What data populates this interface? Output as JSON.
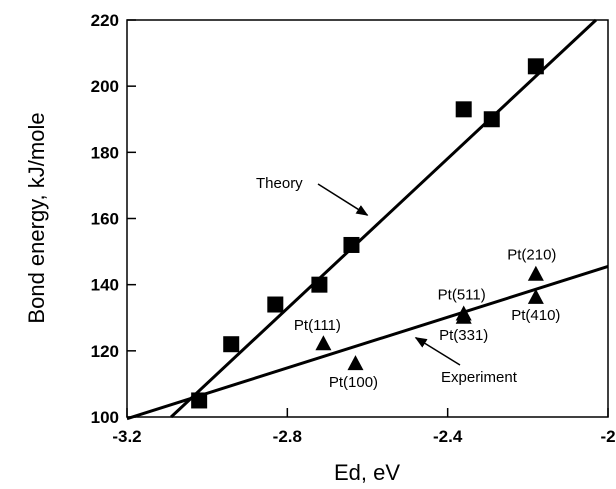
{
  "chart_data": {
    "type": "scatter",
    "xlabel": "Ed,  eV",
    "ylabel": "Bond energy, kJ/mole",
    "xlim": [
      -3.2,
      -2.0
    ],
    "ylim": [
      100,
      220
    ],
    "x_ticks": [
      -3.2,
      -2.8,
      -2.4,
      -2.0
    ],
    "x_tick_labels": [
      "-3.2",
      "-2.8",
      "-2.4",
      "-2"
    ],
    "y_ticks": [
      100,
      120,
      140,
      160,
      180,
      200,
      220
    ],
    "y_tick_labels": [
      "100",
      "120",
      "140",
      "160",
      "180",
      "200",
      "220"
    ],
    "grid": false,
    "series": [
      {
        "marker": "square",
        "points": [
          {
            "x": -3.02,
            "y": 105
          },
          {
            "x": -2.94,
            "y": 122
          },
          {
            "x": -2.83,
            "y": 134
          },
          {
            "x": -2.72,
            "y": 140
          },
          {
            "x": -2.64,
            "y": 152
          },
          {
            "x": -2.36,
            "y": 193
          },
          {
            "x": -2.29,
            "y": 190
          },
          {
            "x": -2.18,
            "y": 206
          }
        ],
        "fit_line": {
          "x": [
            -3.09,
            -2.03
          ],
          "y": [
            100,
            220
          ]
        }
      },
      {
        "marker": "triangle",
        "points": [
          {
            "x": -2.71,
            "y": 122,
            "label": "Pt(111)"
          },
          {
            "x": -2.63,
            "y": 116,
            "label": "Pt(100)"
          },
          {
            "x": -2.36,
            "y": 131,
            "label": "Pt(511)"
          },
          {
            "x": -2.36,
            "y": 130,
            "label": "Pt(331)"
          },
          {
            "x": -2.18,
            "y": 143,
            "label": "Pt(210)"
          },
          {
            "x": -2.18,
            "y": 136,
            "label": "Pt(410)"
          }
        ],
        "fit_line": {
          "x": [
            -3.2,
            -2.0
          ],
          "y": [
            99.5,
            145.5
          ]
        }
      }
    ],
    "annotations": [
      {
        "text": "Theory",
        "points_to": {
          "x": -2.6,
          "y": 161
        }
      },
      {
        "text": "Experiment",
        "points_to": {
          "x": -2.48,
          "y": 124
        }
      }
    ]
  }
}
